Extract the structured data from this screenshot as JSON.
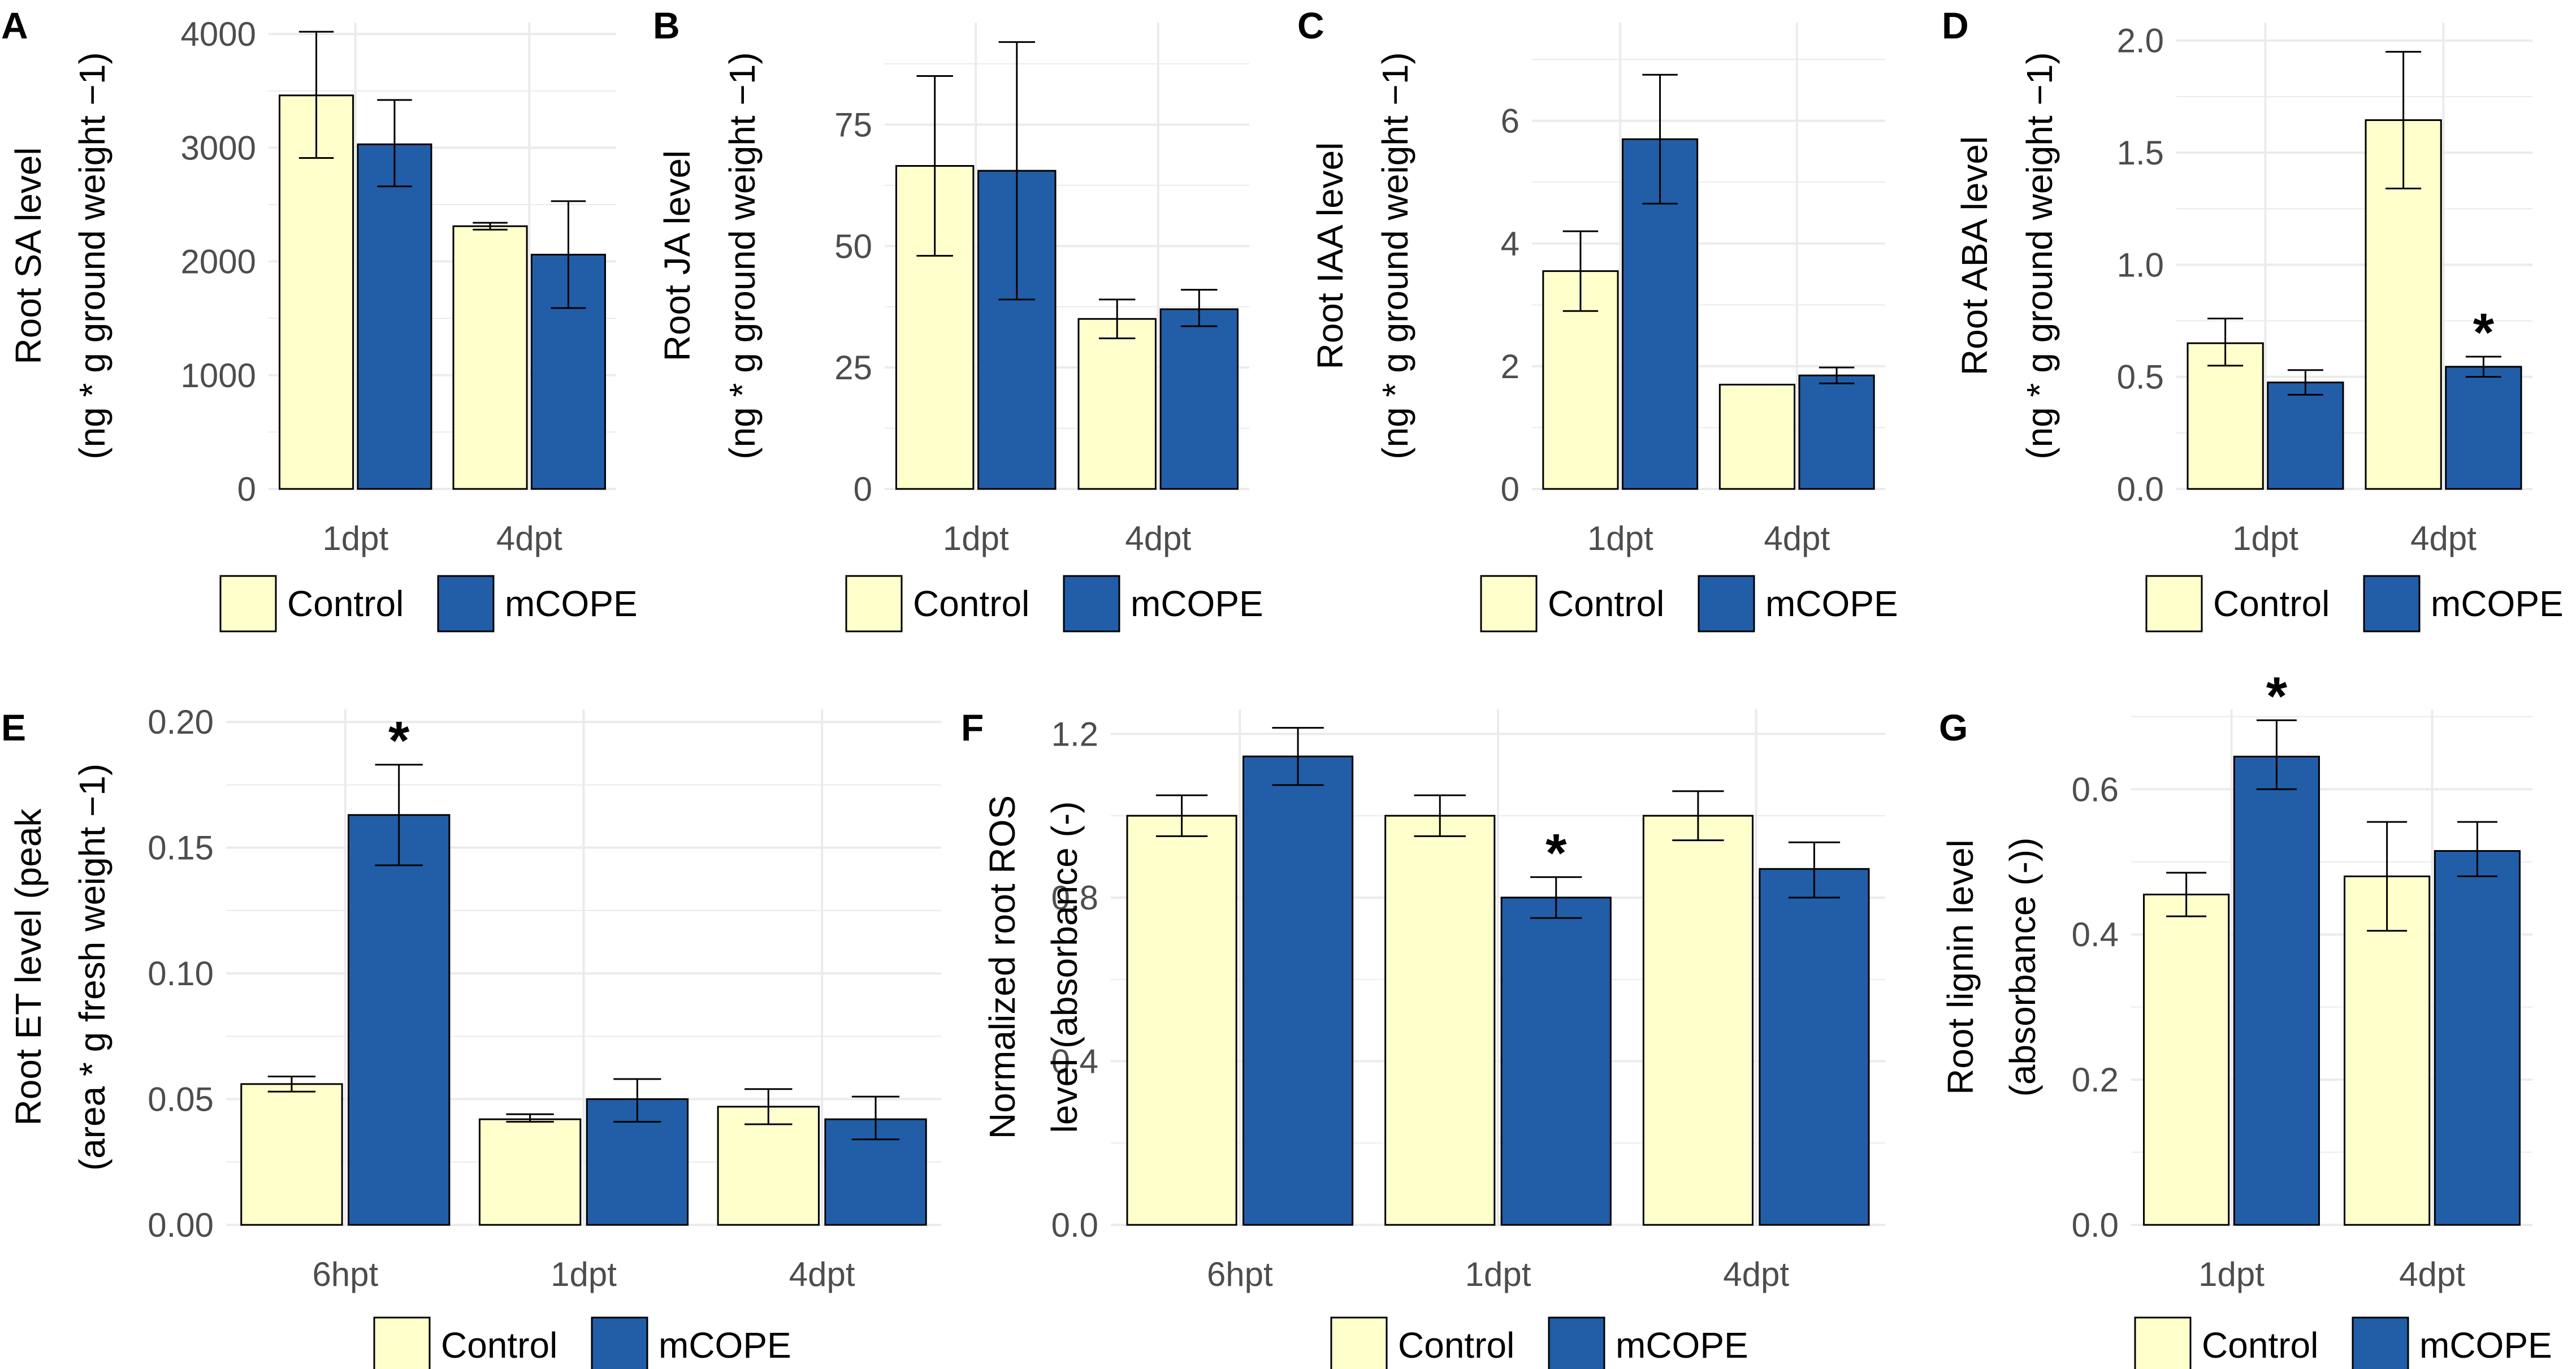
{
  "figure": {
    "legend": {
      "labels": [
        "Control",
        "mCOPE"
      ]
    },
    "colors": {
      "control": "#FFFFCC",
      "mcope": "#225EA8",
      "outline": "#000000",
      "grid": "#EBEBEB",
      "tick_text": "#4D4D4D"
    }
  },
  "chart_data": [
    {
      "panel": "A",
      "type": "bar",
      "ylabel_lines": [
        "Root SA level",
        "(ng * g ground weight −1)"
      ],
      "categories": [
        "1dpt",
        "4dpt"
      ],
      "ylim": [
        0,
        4100
      ],
      "yticks": [
        0,
        1000,
        2000,
        3000,
        4000
      ],
      "yticklabels": [
        "0",
        "1000",
        "2000",
        "3000",
        "4000"
      ],
      "series": [
        {
          "name": "Control",
          "values": [
            3460,
            2310
          ],
          "err_low": [
            2910,
            2280
          ],
          "err_high": [
            4020,
            2340
          ]
        },
        {
          "name": "mCOPE",
          "values": [
            3030,
            2060
          ],
          "err_low": [
            2660,
            1590
          ],
          "err_high": [
            3420,
            2530
          ]
        }
      ],
      "stars": [],
      "legend": [
        "Control",
        "mCOPE"
      ]
    },
    {
      "panel": "B",
      "type": "bar",
      "ylabel_lines": [
        "Root JA level",
        "(ng * g ground weight −1)"
      ],
      "categories": [
        "1dpt",
        "4dpt"
      ],
      "ylim": [
        0,
        96
      ],
      "yticks": [
        0,
        25,
        50,
        75
      ],
      "yticklabels": [
        "0",
        "25",
        "50",
        "75"
      ],
      "series": [
        {
          "name": "Control",
          "values": [
            66.5,
            35
          ],
          "err_low": [
            48,
            31
          ],
          "err_high": [
            85,
            39
          ]
        },
        {
          "name": "mCOPE",
          "values": [
            65.5,
            37
          ],
          "err_low": [
            39,
            33.5
          ],
          "err_high": [
            92,
            41
          ]
        }
      ],
      "stars": [],
      "legend": [
        "Control",
        "mCOPE"
      ]
    },
    {
      "panel": "C",
      "type": "bar",
      "ylabel_lines": [
        "Root IAA level",
        "(ng * g ground weight −1)"
      ],
      "categories": [
        "1dpt",
        "4dpt"
      ],
      "ylim": [
        0,
        7.6
      ],
      "yticks": [
        0,
        2,
        4,
        6
      ],
      "yticklabels": [
        "0",
        "2",
        "4",
        "6"
      ],
      "series": [
        {
          "name": "Control",
          "values": [
            3.55,
            1.7
          ],
          "err_low": [
            2.9,
            1.7
          ],
          "err_high": [
            4.2,
            1.7
          ]
        },
        {
          "name": "mCOPE",
          "values": [
            5.7,
            1.85
          ],
          "err_low": [
            4.65,
            1.72
          ],
          "err_high": [
            6.75,
            1.98
          ]
        }
      ],
      "stars": [],
      "legend": [
        "Control",
        "mCOPE"
      ]
    },
    {
      "panel": "D",
      "type": "bar",
      "ylabel_lines": [
        "Root ABA level",
        "(ng * g ground weight −1)"
      ],
      "categories": [
        "1dpt",
        "4dpt"
      ],
      "ylim": [
        0,
        2.08
      ],
      "yticks": [
        0,
        0.5,
        1.0,
        1.5,
        2.0
      ],
      "yticklabels": [
        "0.0",
        "0.5",
        "1.0",
        "1.5",
        "2.0"
      ],
      "series": [
        {
          "name": "Control",
          "values": [
            0.65,
            1.645
          ],
          "err_low": [
            0.55,
            1.34
          ],
          "err_high": [
            0.76,
            1.95
          ]
        },
        {
          "name": "mCOPE",
          "values": [
            0.475,
            0.545
          ],
          "err_low": [
            0.42,
            0.5
          ],
          "err_high": [
            0.53,
            0.59
          ]
        }
      ],
      "stars": [
        {
          "series": 1,
          "category": 1,
          "label": "*"
        }
      ],
      "legend": [
        "Control",
        "mCOPE"
      ]
    },
    {
      "panel": "E",
      "type": "bar",
      "ylabel_lines": [
        "Root ET level (peak",
        "(area * g fresh weight −1)"
      ],
      "categories": [
        "6hpt",
        "1dpt",
        "4dpt"
      ],
      "ylim": [
        0,
        0.205
      ],
      "yticks": [
        0,
        0.05,
        0.1,
        0.15,
        0.2
      ],
      "yticklabels": [
        "0.00",
        "0.05",
        "0.10",
        "0.15",
        "0.20"
      ],
      "series": [
        {
          "name": "Control",
          "values": [
            0.056,
            0.042,
            0.047
          ],
          "err_low": [
            0.053,
            0.041,
            0.04
          ],
          "err_high": [
            0.059,
            0.044,
            0.054
          ]
        },
        {
          "name": "mCOPE",
          "values": [
            0.163,
            0.05,
            0.042
          ],
          "err_low": [
            0.143,
            0.041,
            0.034
          ],
          "err_high": [
            0.183,
            0.058,
            0.051
          ]
        }
      ],
      "stars": [
        {
          "series": 1,
          "category": 0,
          "label": "*"
        }
      ],
      "legend": [
        "Control",
        "mCOPE"
      ]
    },
    {
      "panel": "F",
      "type": "bar",
      "ylabel_lines": [
        "Normalized root ROS",
        "level (absorbance (-)"
      ],
      "categories": [
        "6hpt",
        "1dpt",
        "4dpt"
      ],
      "ylim": [
        0,
        1.26
      ],
      "yticks": [
        0,
        0.4,
        0.8,
        1.2
      ],
      "yticklabels": [
        "0.0",
        "0.4",
        "0.8",
        "1.2"
      ],
      "series": [
        {
          "name": "Control",
          "values": [
            1.0,
            1.0,
            1.0
          ],
          "err_low": [
            0.95,
            0.95,
            0.94
          ],
          "err_high": [
            1.05,
            1.05,
            1.06
          ]
        },
        {
          "name": "mCOPE",
          "values": [
            1.145,
            0.8,
            0.87
          ],
          "err_low": [
            1.075,
            0.75,
            0.8
          ],
          "err_high": [
            1.215,
            0.85,
            0.935
          ]
        }
      ],
      "stars": [
        {
          "series": 1,
          "category": 1,
          "label": "*"
        }
      ],
      "legend": [
        "Control",
        "mCOPE"
      ]
    },
    {
      "panel": "G",
      "type": "bar",
      "ylabel_lines": [
        "Root lignin level",
        "(absorbance (-))"
      ],
      "categories": [
        "1dpt",
        "4dpt"
      ],
      "ylim": [
        0,
        0.71
      ],
      "yticks": [
        0,
        0.2,
        0.4,
        0.6
      ],
      "yticklabels": [
        "0.0",
        "0.2",
        "0.4",
        "0.6"
      ],
      "series": [
        {
          "name": "Control",
          "values": [
            0.455,
            0.48
          ],
          "err_low": [
            0.425,
            0.405
          ],
          "err_high": [
            0.485,
            0.555
          ]
        },
        {
          "name": "mCOPE",
          "values": [
            0.645,
            0.515
          ],
          "err_low": [
            0.6,
            0.48
          ],
          "err_high": [
            0.695,
            0.555
          ]
        }
      ],
      "stars": [
        {
          "series": 1,
          "category": 0,
          "label": "*"
        }
      ],
      "legend": [
        "Control",
        "mCOPE"
      ]
    }
  ]
}
